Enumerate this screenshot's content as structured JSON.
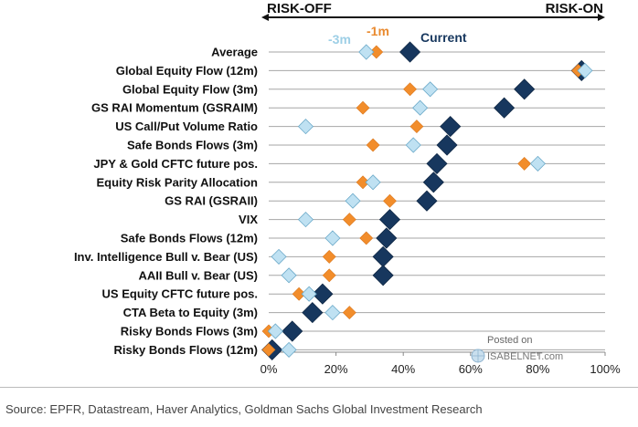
{
  "header": {
    "left_label": "RISK-OFF",
    "right_label": "RISK-ON"
  },
  "legend": {
    "series_3m": "-3m",
    "series_1m": "-1m",
    "series_current": "Current"
  },
  "watermark": {
    "posted": "Posted on",
    "site": "ISABELNET.com"
  },
  "source": "Source: EPFR, Datastream, Haver Analytics, Goldman Sachs Global Investment Research",
  "colors": {
    "current": "#17375e",
    "m1": "#f28d2b",
    "m3": "#bfe1f2",
    "grid": "#a6a6a6"
  },
  "chart_data": {
    "type": "scatter",
    "categories": [
      "Average",
      "Global Equity Flow (12m)",
      "Global Equity Flow (3m)",
      "GS RAI Momentum (GSRAIM)",
      "US Call/Put Volume Ratio",
      "Safe Bonds Flows (3m)",
      "JPY & Gold CFTC future pos.",
      "Equity Risk Parity Allocation",
      "GS RAI (GSRAII)",
      "VIX",
      "Safe Bonds Flows (12m)",
      "Inv. Intelligence Bull v. Bear (US)",
      "AAII Bull v. Bear (US)",
      "US Equity CFTC future pos.",
      "CTA Beta to Equity (3m)",
      "Risky Bonds Flows (3m)",
      "Risky Bonds Flows (12m)"
    ],
    "series": [
      {
        "name": "-3m",
        "values": [
          29,
          94,
          48,
          45,
          11,
          43,
          80,
          31,
          25,
          11,
          19,
          3,
          6,
          12,
          19,
          2,
          6
        ]
      },
      {
        "name": "-1m",
        "values": [
          32,
          92,
          42,
          28,
          44,
          31,
          76,
          28,
          36,
          24,
          29,
          18,
          18,
          9,
          24,
          0,
          0
        ]
      },
      {
        "name": "Current",
        "values": [
          42,
          93,
          76,
          70,
          54,
          53,
          50,
          49,
          47,
          36,
          35,
          34,
          34,
          16,
          13,
          7,
          1
        ]
      }
    ],
    "xlim": [
      0,
      100
    ],
    "x_ticks": [
      "0%",
      "20%",
      "40%",
      "60%",
      "80%",
      "100%"
    ],
    "grid": true
  }
}
